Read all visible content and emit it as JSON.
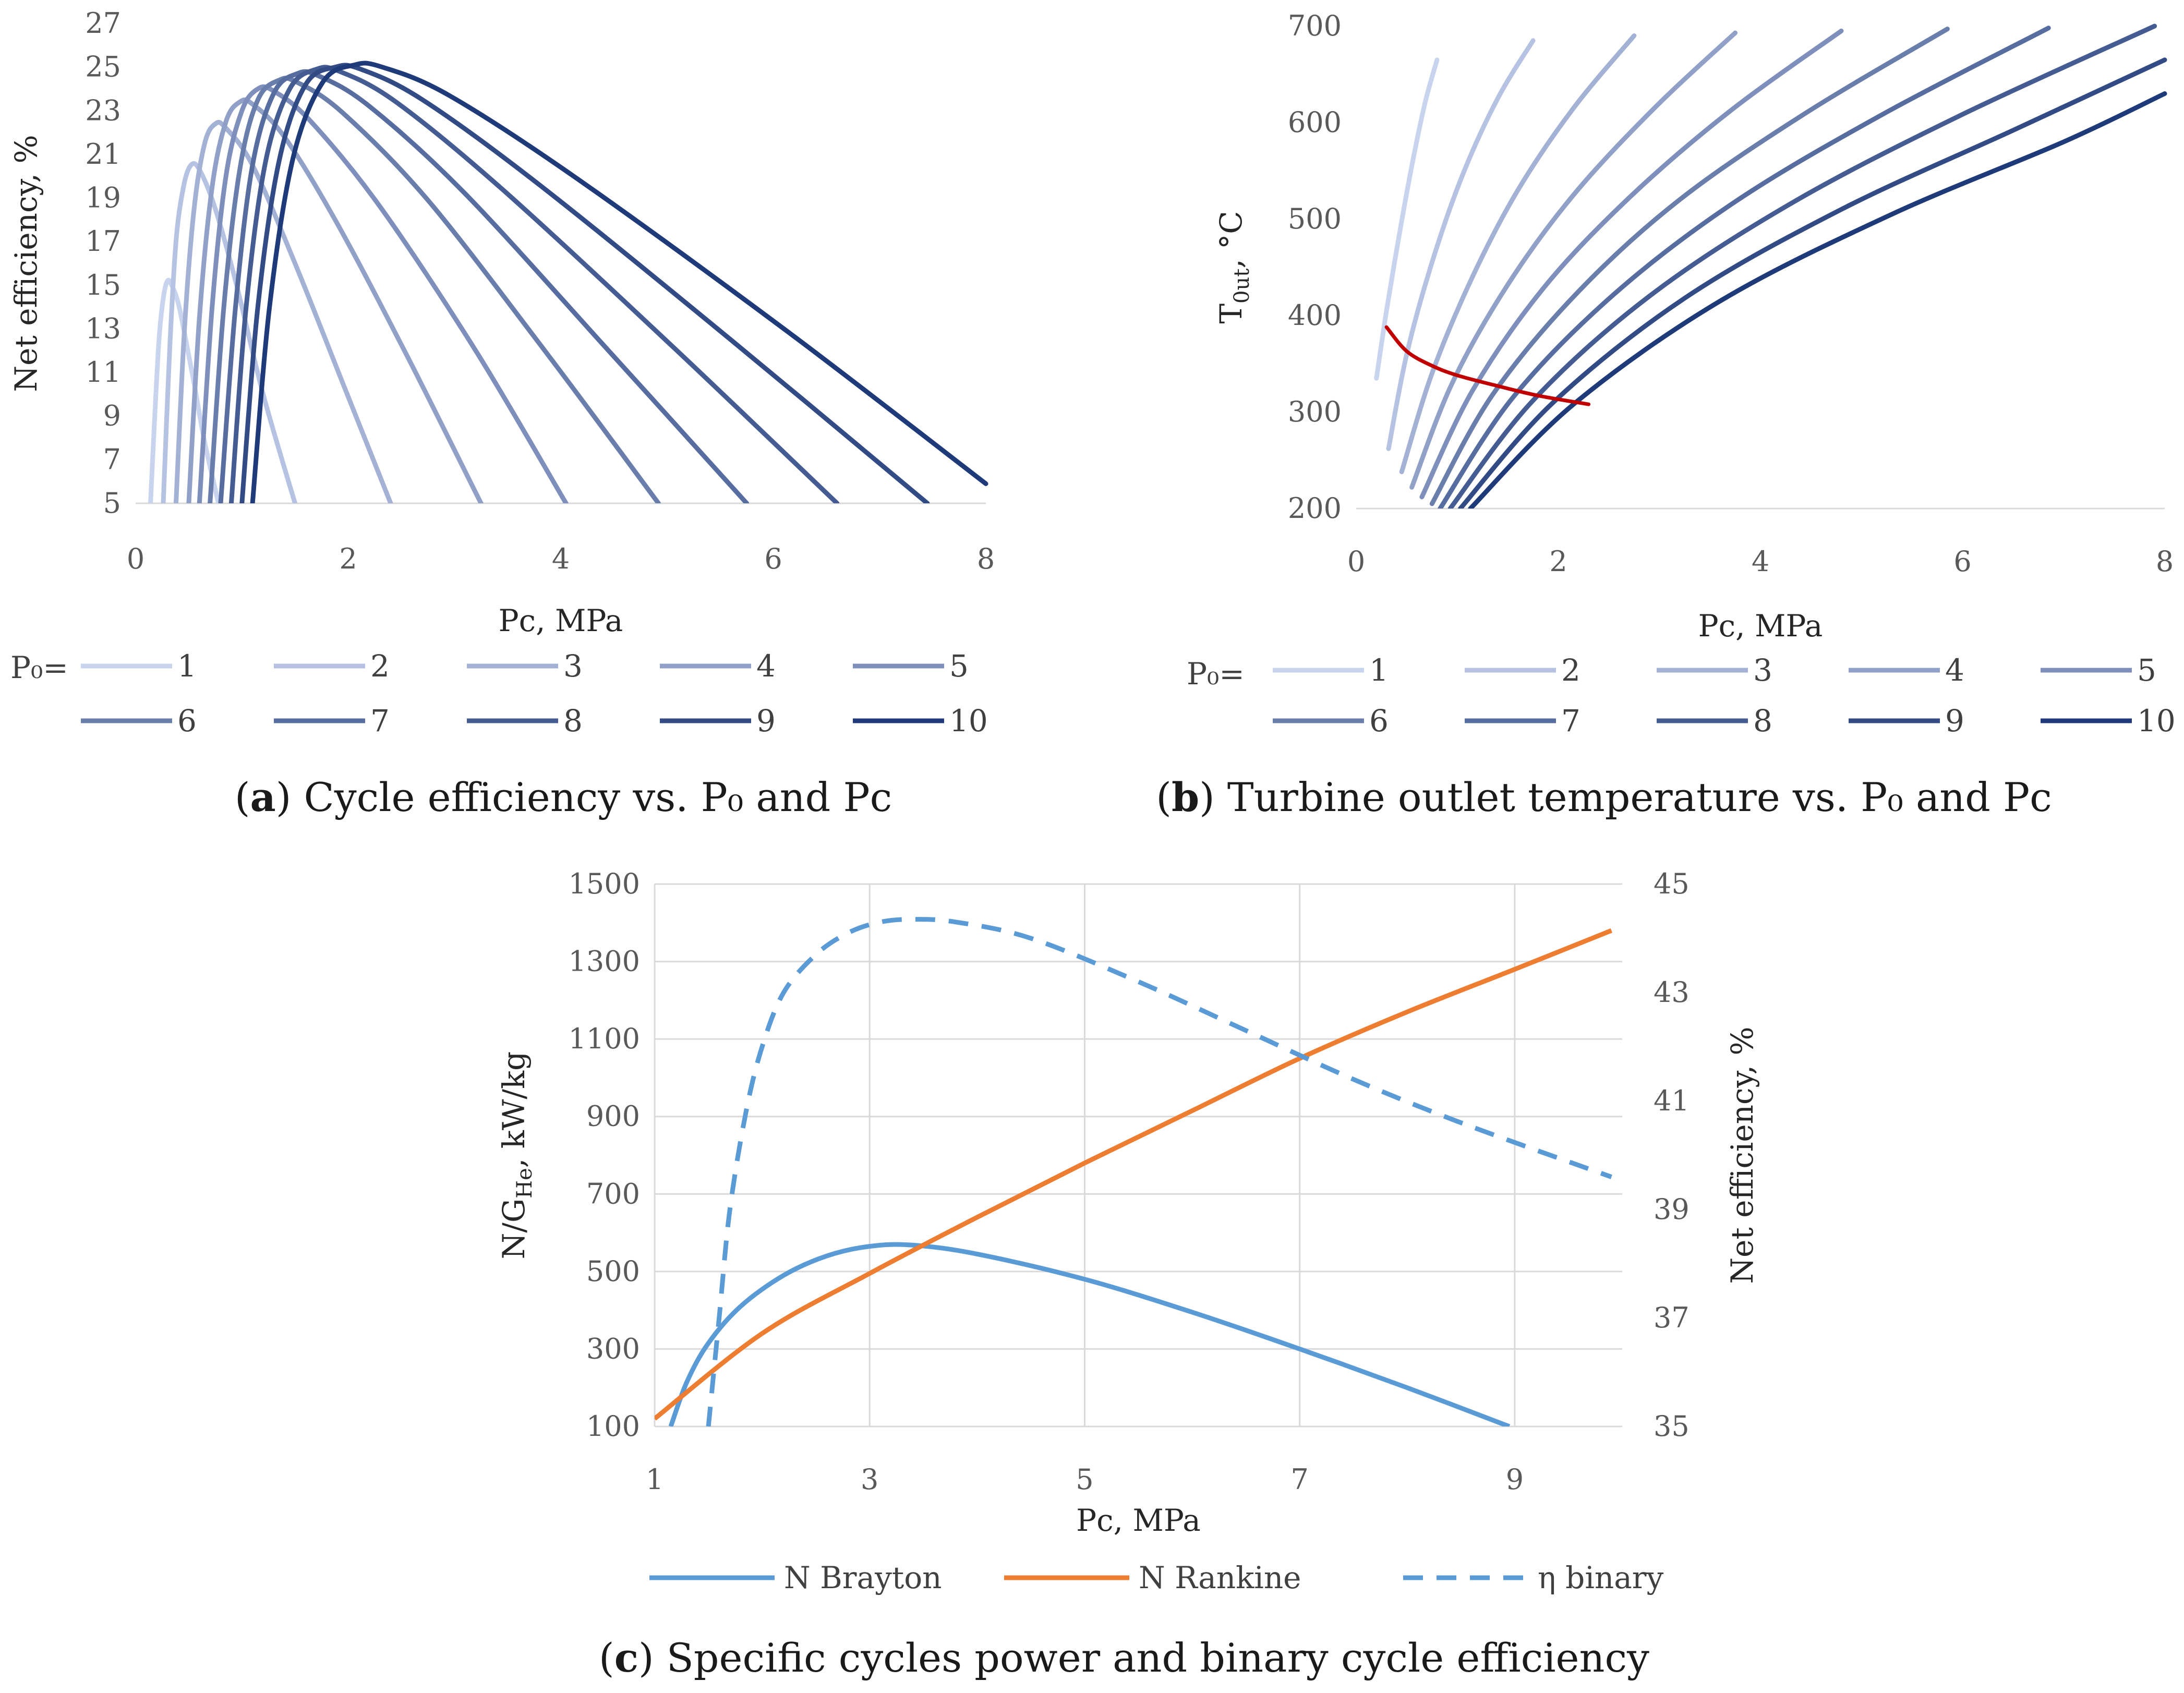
{
  "panels": {
    "a": {
      "caption_letter": "a",
      "caption_text": ") Cycle efficiency vs. P₀ and Pc",
      "caption_open": "(",
      "legend_prefix": "P₀="
    },
    "b": {
      "caption_letter": "b",
      "caption_text": ") Turbine outlet temperature vs. P₀ and Pc",
      "caption_open": "(",
      "legend_prefix": "P₀="
    },
    "c": {
      "caption_letter": "c",
      "caption_text": ") Specific cycles power and binary cycle efficiency",
      "caption_open": "("
    }
  },
  "chart_data": [
    {
      "id": "a",
      "type": "line",
      "xlabel": "Pc, MPa",
      "ylabel": "Net efficiency, %",
      "xlim": [
        0,
        8
      ],
      "ylim": [
        5,
        27
      ],
      "xticks": [
        0,
        2,
        4,
        6,
        8
      ],
      "yticks": [
        5,
        7,
        9,
        11,
        13,
        15,
        17,
        19,
        21,
        23,
        25,
        27
      ],
      "grid": false,
      "legend": "bottom",
      "series_color_range": [
        "#c8d3ee",
        "#1f3a78"
      ],
      "series": [
        {
          "name": "1",
          "x": [
            0.14,
            0.18,
            0.22,
            0.26,
            0.3,
            0.34,
            0.4,
            0.46,
            0.55,
            0.65,
            0.78
          ],
          "y": [
            5,
            9,
            12.5,
            14.4,
            15.2,
            15.0,
            14.2,
            12.8,
            10.5,
            7.8,
            5
          ]
        },
        {
          "name": "2",
          "x": [
            0.26,
            0.32,
            0.38,
            0.45,
            0.52,
            0.6,
            0.75,
            0.95,
            1.2,
            1.5
          ],
          "y": [
            5,
            12,
            17,
            19.5,
            20.5,
            20.3,
            18.5,
            15.0,
            10.0,
            5
          ]
        },
        {
          "name": "3",
          "x": [
            0.38,
            0.46,
            0.55,
            0.65,
            0.75,
            0.85,
            1.1,
            1.5,
            1.95,
            2.4
          ],
          "y": [
            5,
            13,
            18.5,
            21.5,
            22.4,
            22.2,
            20.5,
            16.0,
            10.5,
            5
          ]
        },
        {
          "name": "4",
          "x": [
            0.5,
            0.6,
            0.72,
            0.85,
            0.98,
            1.1,
            1.4,
            1.9,
            2.55,
            3.25
          ],
          "y": [
            5,
            13.5,
            19.5,
            22.5,
            23.4,
            23.3,
            21.8,
            17.8,
            11.8,
            5
          ]
        },
        {
          "name": "5",
          "x": [
            0.6,
            0.72,
            0.85,
            1.0,
            1.15,
            1.3,
            1.65,
            2.3,
            3.2,
            4.05
          ],
          "y": [
            5,
            14,
            20.0,
            23.0,
            24.0,
            23.9,
            22.5,
            18.6,
            12.0,
            5
          ]
        },
        {
          "name": "6",
          "x": [
            0.7,
            0.83,
            0.98,
            1.15,
            1.35,
            1.52,
            1.95,
            2.75,
            3.85,
            4.92
          ],
          "y": [
            5,
            14,
            20.3,
            23.5,
            24.4,
            24.3,
            22.9,
            18.9,
            12.0,
            5
          ]
        },
        {
          "name": "7",
          "x": [
            0.8,
            0.94,
            1.1,
            1.3,
            1.52,
            1.72,
            2.2,
            3.1,
            4.45,
            5.75
          ],
          "y": [
            5,
            14,
            20.5,
            23.8,
            24.7,
            24.6,
            23.2,
            19.2,
            12.0,
            5
          ]
        },
        {
          "name": "8",
          "x": [
            0.9,
            1.04,
            1.22,
            1.45,
            1.7,
            1.92,
            2.45,
            3.45,
            5.05,
            6.6
          ],
          "y": [
            5,
            14,
            20.6,
            24.0,
            24.9,
            24.8,
            23.4,
            19.4,
            12.2,
            5
          ]
        },
        {
          "name": "9",
          "x": [
            1.0,
            1.15,
            1.35,
            1.6,
            1.88,
            2.12,
            2.7,
            3.8,
            5.6,
            7.45
          ],
          "y": [
            5,
            14,
            20.7,
            24.2,
            25.0,
            24.9,
            23.5,
            19.6,
            12.5,
            5
          ]
        },
        {
          "name": "10",
          "x": [
            1.1,
            1.26,
            1.48,
            1.76,
            2.06,
            2.32,
            2.95,
            4.15,
            6.1,
            8.0
          ],
          "y": [
            5,
            14,
            20.8,
            24.3,
            25.1,
            25.0,
            23.7,
            19.9,
            13.0,
            5.9
          ]
        }
      ]
    },
    {
      "id": "b",
      "type": "line",
      "xlabel": "Pc, MPa",
      "ylabel": "T₀ᵤₜ, °C",
      "ylabel_main": "T",
      "ylabel_sub": "0ut",
      "ylabel_unit": ", °C",
      "xlim": [
        0,
        8
      ],
      "ylim": [
        200,
        700
      ],
      "xticks": [
        0,
        2,
        4,
        6,
        8
      ],
      "yticks": [
        200,
        300,
        400,
        500,
        600,
        700
      ],
      "grid": false,
      "legend": "bottom",
      "series_color_range": [
        "#c8d3ee",
        "#1f3a78"
      ],
      "series": [
        {
          "name": "1",
          "x": [
            0.2,
            0.3,
            0.42,
            0.55,
            0.68,
            0.8
          ],
          "y": [
            335,
            405,
            480,
            555,
            620,
            665
          ]
        },
        {
          "name": "2",
          "x": [
            0.32,
            0.5,
            0.75,
            1.05,
            1.4,
            1.75
          ],
          "y": [
            262,
            360,
            455,
            545,
            625,
            685
          ]
        },
        {
          "name": "3",
          "x": [
            0.45,
            0.75,
            1.15,
            1.6,
            2.15,
            2.75
          ],
          "y": [
            238,
            340,
            440,
            530,
            615,
            690
          ]
        },
        {
          "name": "4",
          "x": [
            0.55,
            0.95,
            1.5,
            2.15,
            2.95,
            3.75
          ],
          "y": [
            222,
            330,
            432,
            525,
            615,
            693
          ]
        },
        {
          "name": "5",
          "x": [
            0.65,
            1.15,
            1.85,
            2.7,
            3.7,
            4.8
          ],
          "y": [
            212,
            322,
            428,
            522,
            612,
            695
          ]
        },
        {
          "name": "6",
          "x": [
            0.75,
            1.35,
            2.2,
            3.2,
            4.45,
            5.85
          ],
          "y": [
            205,
            318,
            425,
            520,
            610,
            697
          ]
        },
        {
          "name": "7",
          "x": [
            0.83,
            1.55,
            2.55,
            3.75,
            5.2,
            6.85
          ],
          "y": [
            200,
            315,
            422,
            518,
            608,
            698
          ]
        },
        {
          "name": "8",
          "x": [
            0.93,
            1.75,
            2.9,
            4.3,
            5.95,
            7.9
          ],
          "y": [
            200,
            312,
            420,
            516,
            606,
            700
          ]
        },
        {
          "name": "9",
          "x": [
            1.03,
            1.95,
            3.25,
            4.8,
            6.5,
            8.0
          ],
          "y": [
            200,
            310,
            418,
            510,
            592,
            665
          ]
        },
        {
          "name": "10",
          "x": [
            1.13,
            2.15,
            3.6,
            5.3,
            7.0,
            8.0
          ],
          "y": [
            200,
            308,
            415,
            505,
            580,
            630
          ]
        }
      ],
      "optimum_curve": {
        "color": "#c00000",
        "x": [
          0.3,
          0.5,
          0.75,
          1.0,
          1.4,
          1.8,
          2.3
        ],
        "y": [
          388,
          363,
          348,
          338,
          327,
          317,
          308
        ]
      }
    },
    {
      "id": "c",
      "type": "line",
      "xlabel": "Pc, MPa",
      "ylabel": "N/Gₕₑ, kW/kg",
      "ylabel_main": "N/G",
      "ylabel_sub": "He",
      "ylabel_unit": ", kW/kg",
      "y2label": "Net efficiency, %",
      "xlim": [
        1,
        10
      ],
      "ylim": [
        100,
        1500
      ],
      "y2lim": [
        35,
        45
      ],
      "xticks": [
        1,
        3,
        5,
        7,
        9
      ],
      "yticks": [
        100,
        300,
        500,
        700,
        900,
        1100,
        1300,
        1500
      ],
      "y2ticks": [
        35,
        37,
        39,
        41,
        43,
        45
      ],
      "grid": true,
      "legend": "bottom",
      "series": [
        {
          "name": "N Brayton",
          "axis": "left",
          "color": "#5b9bd5",
          "dash": "solid",
          "x": [
            1.15,
            1.3,
            1.5,
            1.8,
            2.2,
            2.6,
            3.0,
            3.4,
            4.0,
            5.0,
            6.0,
            7.0,
            8.0,
            8.95
          ],
          "y": [
            100,
            215,
            315,
            410,
            490,
            540,
            565,
            568,
            545,
            480,
            395,
            300,
            200,
            100
          ]
        },
        {
          "name": "N Rankine",
          "axis": "left",
          "color": "#ed7d31",
          "dash": "solid",
          "x": [
            1.0,
            2.0,
            3.0,
            4.0,
            5.0,
            6.0,
            7.0,
            8.0,
            9.0,
            9.9
          ],
          "y": [
            120,
            340,
            495,
            640,
            780,
            915,
            1050,
            1170,
            1280,
            1380
          ]
        },
        {
          "name": "η binary",
          "axis": "right",
          "color": "#5b9bd5",
          "dash": "dashed",
          "x": [
            1.5,
            1.6,
            1.7,
            1.85,
            2.0,
            2.2,
            2.5,
            2.8,
            3.1,
            3.4,
            3.8,
            4.5,
            5.5,
            6.5,
            7.5,
            8.5,
            9.9
          ],
          "y": [
            35.0,
            37.0,
            39.0,
            40.8,
            42.0,
            43.0,
            43.7,
            44.1,
            44.3,
            44.35,
            44.3,
            44.0,
            43.2,
            42.3,
            41.4,
            40.6,
            39.6
          ]
        }
      ]
    }
  ]
}
